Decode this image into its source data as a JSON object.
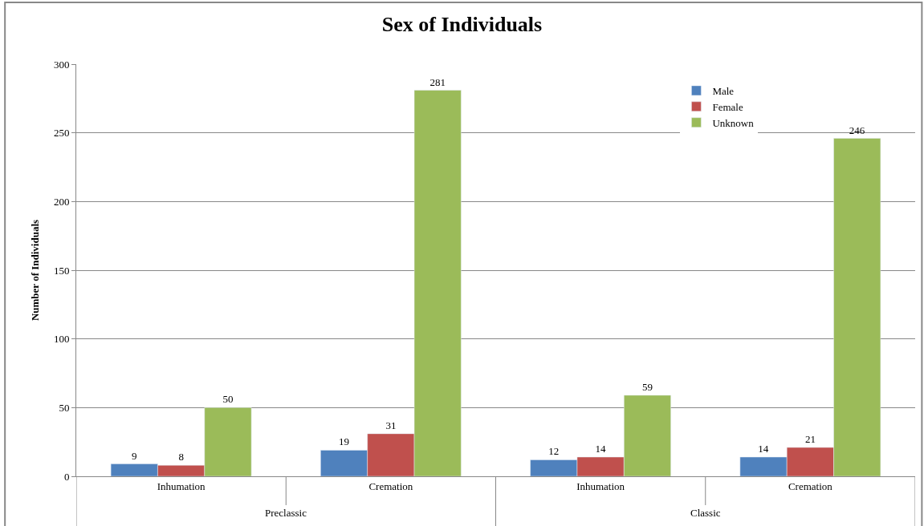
{
  "chart_data": {
    "type": "bar",
    "title": "Sex of Individuals",
    "ylabel": "Number of Individuals",
    "categories": [
      "Inhumation",
      "Cremation",
      "Inhumation",
      "Cremation"
    ],
    "annotations": [
      "Preclassic",
      "Classic"
    ],
    "series": [
      {
        "name": "Male",
        "color": "#4f81bd",
        "values": [
          9,
          19,
          12,
          14
        ]
      },
      {
        "name": "Female",
        "color": "#c0504d",
        "values": [
          8,
          31,
          14,
          21
        ]
      },
      {
        "name": "Unknown",
        "color": "#9bbb59",
        "values": [
          50,
          281,
          59,
          246
        ]
      }
    ],
    "ylim": [
      0,
      300
    ],
    "yticks": [
      0,
      50,
      100,
      150,
      200,
      250,
      300
    ],
    "grid": "y",
    "legend": "top right",
    "data_labels": true
  }
}
